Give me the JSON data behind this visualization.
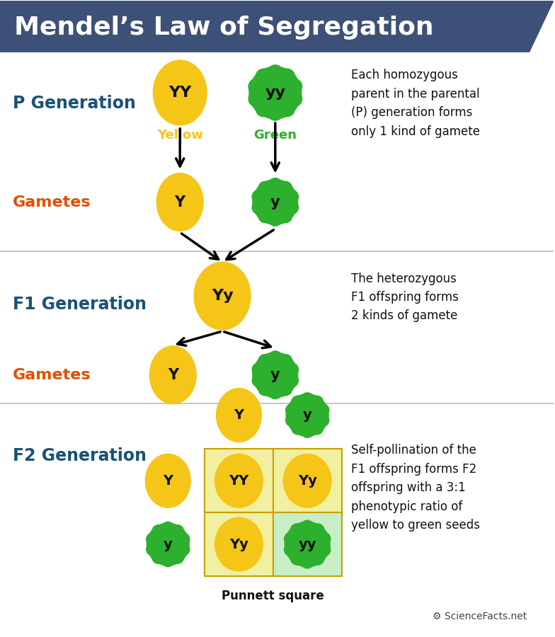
{
  "title": "Mendel’s Law of Segregation",
  "title_bg": "#3d5077",
  "title_color": "#ffffff",
  "yellow_color": "#f5c518",
  "green_color": "#2db02d",
  "black_color": "#111111",
  "red_label": "#e05000",
  "blue_label": "#1a5276",
  "section_line_color": "#bbbbbb",
  "p_gen_label": "P Generation",
  "f1_gen_label": "F1 Generation",
  "f2_gen_label": "F2 Generation",
  "gametes_label": "Gametes",
  "yellow_text": "Yellow",
  "green_text": "Green",
  "punnett_text": "Punnett square",
  "p_desc": "Each homozygous\nparent in the parental\n(P) generation forms\nonly 1 kind of gamete",
  "f1_desc": "The heterozygous\nF1 offspring forms\n2 kinds of gamete",
  "f2_desc": "Self-pollination of the\nF1 offspring forms F2\noffspring with a 3:1\nphenotypic ratio of\nyellow to green seeds",
  "bg_color": "#ffffff",
  "punnett_bg": "#f0f0a0",
  "punnett_green_bg": "#c8eec8",
  "sciencefacts_color": "#444444"
}
